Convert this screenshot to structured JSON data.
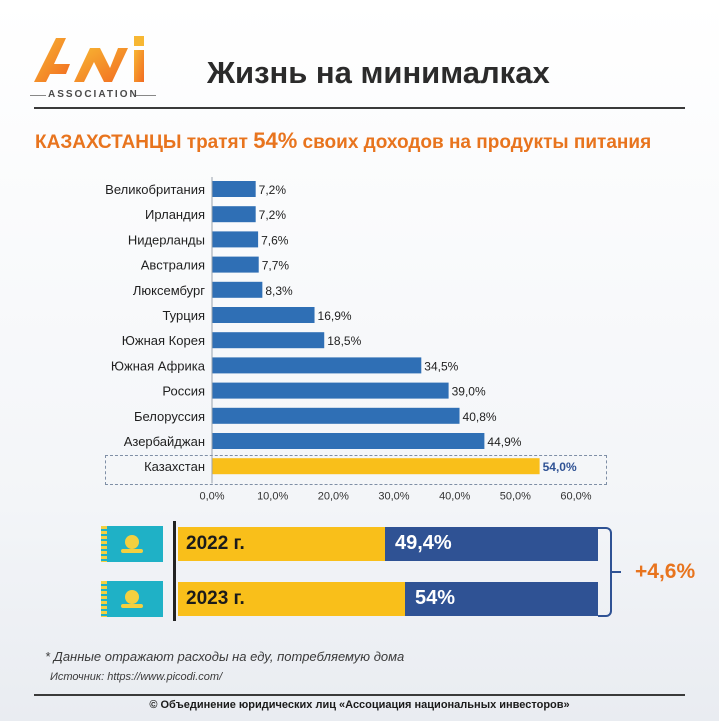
{
  "header": {
    "logo_text": "ASSOCIATION",
    "title": "Жизнь на минималках"
  },
  "subtitle": {
    "part1": "КАЗАХСТАНЦЫ",
    "part2": " тратят ",
    "part3": "54%",
    "part4": " своих доходов на продукты питания"
  },
  "colors": {
    "bar": "#2f6fb5",
    "highlight": "#f9bf1a",
    "accent": "#e8741e",
    "dark_blue": "#2f5294"
  },
  "chart_data": {
    "type": "bar",
    "orientation": "horizontal",
    "categories": [
      "Великобритания",
      "Ирландия",
      "Нидерланды",
      "Австралия",
      "Люксембург",
      "Турция",
      "Южная Корея",
      "Южная Африка",
      "Россия",
      "Белоруссия",
      "Азербайджан",
      "Казахстан"
    ],
    "values": [
      7.2,
      7.2,
      7.6,
      7.7,
      8.3,
      16.9,
      18.5,
      34.5,
      39.0,
      40.8,
      44.9,
      54.0
    ],
    "value_labels": [
      "7,2%",
      "7,2%",
      "7,6%",
      "7,7%",
      "8,3%",
      "16,9%",
      "18,5%",
      "34,5%",
      "39,0%",
      "40,8%",
      "44,9%",
      "54,0%"
    ],
    "highlight_category": "Казахстан",
    "xlim": [
      0,
      60
    ],
    "ticks": [
      "0,0%",
      "10,0%",
      "20,0%",
      "30,0%",
      "40,0%",
      "50,0%",
      "60,0%"
    ],
    "grid": false
  },
  "comparison": {
    "rows": [
      {
        "year": "2022 г.",
        "value": 49.4,
        "label": "49,4%"
      },
      {
        "year": "2023 г.",
        "value": 54,
        "label": "54%"
      }
    ],
    "difference": "+4,6%"
  },
  "footer": {
    "note": "* Данные отражают расходы на еду, потребляемую дома",
    "source": "Источник: https://www.picodi.com/",
    "copyright": "© Объединение юридических лиц «Ассоциация национальных инвесторов»"
  }
}
